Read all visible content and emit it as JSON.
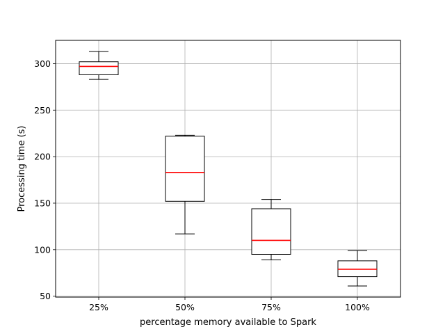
{
  "chart_data": {
    "type": "box",
    "title": "",
    "xlabel": "percentage memory available to Spark",
    "ylabel": "Processing time (s)",
    "categories": [
      "25%",
      "50%",
      "75%",
      "100%"
    ],
    "ylim": [
      49,
      325
    ],
    "yticks": [
      50,
      100,
      150,
      200,
      250,
      300
    ],
    "grid": true,
    "colors": {
      "box": "#000000",
      "median": "#ff0000",
      "grid": "#b0b0b0"
    },
    "boxes": [
      {
        "category": "25%",
        "whisker_low": 283,
        "q1": 288,
        "median": 297,
        "q3": 302,
        "whisker_high": 313
      },
      {
        "category": "50%",
        "whisker_low": 117,
        "q1": 152,
        "median": 183,
        "q3": 222,
        "whisker_high": 223
      },
      {
        "category": "75%",
        "whisker_low": 89,
        "q1": 95,
        "median": 110,
        "q3": 144,
        "whisker_high": 154
      },
      {
        "category": "100%",
        "whisker_low": 61,
        "q1": 71,
        "median": 79,
        "q3": 88,
        "whisker_high": 99
      }
    ]
  }
}
